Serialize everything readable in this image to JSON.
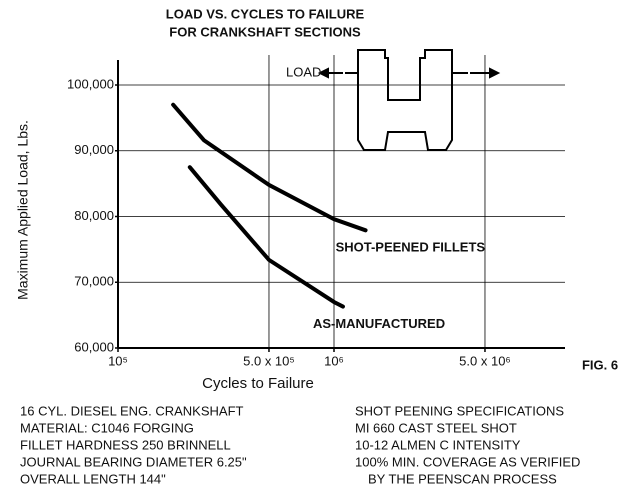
{
  "chart_data": {
    "type": "line",
    "title": [
      "LOAD VS. CYCLES TO FAILURE",
      "FOR CRANKSHAFT SECTIONS"
    ],
    "x_label": "Cycles to Failure",
    "y_label": "Maximum Applied Load, Lbs.",
    "x_log": true,
    "xlim": [
      100000,
      10000000
    ],
    "ylim": [
      60000,
      100000
    ],
    "xticks": [
      {
        "value": 100000,
        "label": "10⁵"
      },
      {
        "value": 500000,
        "label": "5.0 x 10⁵"
      },
      {
        "value": 1000000,
        "label": "10⁶"
      },
      {
        "value": 5000000,
        "label": "5.0 x 10⁶"
      }
    ],
    "yticks": [
      {
        "value": 60000,
        "label": "60,000"
      },
      {
        "value": 70000,
        "label": "70,000"
      },
      {
        "value": 80000,
        "label": "80,000"
      },
      {
        "value": 90000,
        "label": "90,000"
      },
      {
        "value": 100000,
        "label": "100,000"
      }
    ],
    "grid": true,
    "series": [
      {
        "name": "SHOT-PEENED FILLETS",
        "color": "#000000",
        "x": [
          180000,
          250000,
          500000,
          1000000,
          1400000
        ],
        "values": [
          97000,
          91600,
          84800,
          79600,
          77900
        ]
      },
      {
        "name": "AS-MANUFACTURED",
        "color": "#000000",
        "x": [
          215000,
          300000,
          500000,
          1000000,
          1100000
        ],
        "values": [
          87500,
          81800,
          73400,
          67000,
          66300
        ]
      }
    ],
    "annotations": [
      "LOAD",
      "FIG. 6"
    ],
    "notes_left": [
      "16 CYL. DIESEL ENG. CRANKSHAFT",
      "MATERIAL: C1046 FORGING",
      "FILLET HARDNESS 250 BRINNELL",
      "JOURNAL BEARING DIAMETER 6.25\"",
      "OVERALL LENGTH 144\""
    ],
    "notes_right": [
      "SHOT PEENING SPECIFICATIONS",
      "MI 660 CAST STEEL SHOT",
      "10-12 ALMEN C INTENSITY",
      "100% MIN. COVERAGE AS VERIFIED",
      "BY THE PEENSCAN PROCESS"
    ]
  }
}
